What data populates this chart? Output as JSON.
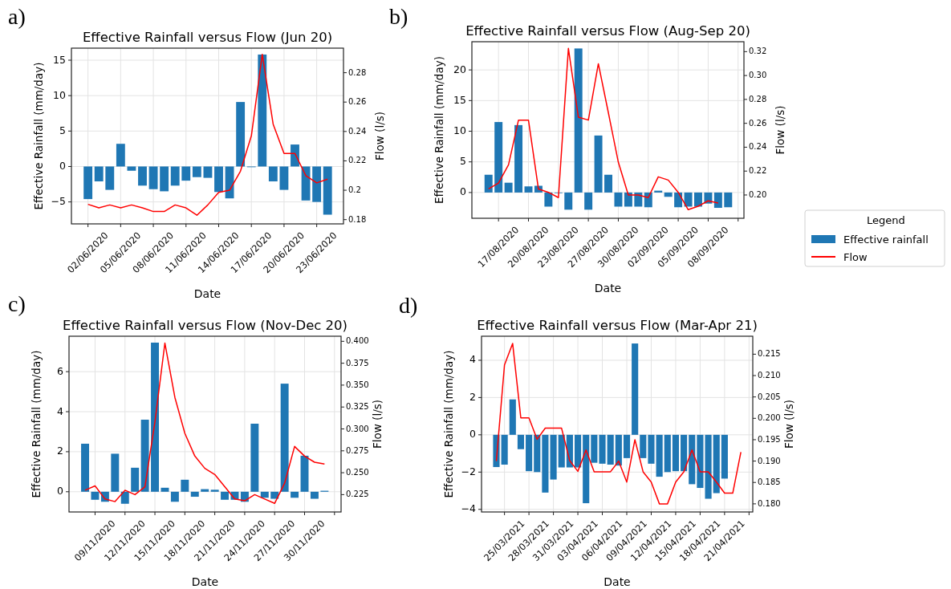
{
  "chart_data": [
    {
      "type": "bar",
      "title": "Effective Rainfall versus Flow (Jun 20)",
      "xlabel": "Date",
      "ylabel": "Effective Rainfall (mm/day)",
      "y2label": "Flow (l/s)",
      "annotations": [
        "a)"
      ],
      "grid": true,
      "x": [
        "2020-06-02",
        "2020-06-03",
        "2020-06-04",
        "2020-06-05",
        "2020-06-06",
        "2020-06-07",
        "2020-06-08",
        "2020-06-09",
        "2020-06-10",
        "2020-06-11",
        "2020-06-12",
        "2020-06-13",
        "2020-06-14",
        "2020-06-15",
        "2020-06-16",
        "2020-06-17",
        "2020-06-18",
        "2020-06-19",
        "2020-06-20",
        "2020-06-21",
        "2020-06-22",
        "2020-06-23",
        "2020-06-24"
      ],
      "xlim": [
        "2020-05-31T11:30",
        "2020-06-25T11:00"
      ],
      "xticks": [
        {
          "value": "2020-06-02",
          "label": "02/06/2020"
        },
        {
          "value": "2020-06-05",
          "label": "05/06/2020"
        },
        {
          "value": "2020-06-08",
          "label": "08/06/2020"
        },
        {
          "value": "2020-06-11",
          "label": "11/06/2020"
        },
        {
          "value": "2020-06-14",
          "label": "14/06/2020"
        },
        {
          "value": "2020-06-17",
          "label": "17/06/2020"
        },
        {
          "value": "2020-06-20",
          "label": "20/06/2020"
        },
        {
          "value": "2020-06-23",
          "label": "23/06/2020"
        }
      ],
      "ylim": [
        -8.1,
        16.7
      ],
      "yticks": [
        {
          "value": -5,
          "label": "−5"
        },
        0,
        5,
        10,
        15
      ],
      "y2lim": [
        0.1771,
        0.2967
      ],
      "y2ticks": [
        0.18,
        0.2,
        0.22,
        0.24,
        0.26,
        0.28
      ],
      "series": [
        {
          "color": "#1f77b4",
          "values": [
            -4.6,
            -2.1,
            -3.3,
            3.2,
            -0.6,
            -2.7,
            -3.2,
            -3.5,
            -2.7,
            -2.0,
            -1.5,
            -1.6,
            -3.6,
            -4.5,
            9.1,
            -0.1,
            15.8,
            -2.1,
            -3.3,
            3.1,
            -4.8,
            -5.0,
            -6.8
          ]
        },
        {
          "type": "line",
          "axis": "y2",
          "color": "#ff0000",
          "values": [
            0.1904,
            0.188,
            0.19,
            0.188,
            0.19,
            0.188,
            0.1855,
            0.1855,
            0.19,
            0.188,
            0.183,
            0.19,
            0.1985,
            0.2,
            0.213,
            0.237,
            0.2925,
            0.245,
            0.225,
            0.225,
            0.21,
            0.205,
            0.2075
          ]
        }
      ]
    },
    {
      "type": "bar",
      "title": "Effective Rainfall versus Flow (Aug-Sep 20)",
      "xlabel": "Date",
      "ylabel": "Effective Rainfall (mm/day)",
      "y2label": "Flow (l/s)",
      "annotations": [
        "b)"
      ],
      "grid": true,
      "legend": "right",
      "legend_title": "Legend",
      "x": [
        "2020-08-17",
        "2020-08-18",
        "2020-08-19",
        "2020-08-20",
        "2020-08-21",
        "2020-08-22",
        "2020-08-23",
        "2020-08-24",
        "2020-08-25",
        "2020-08-26",
        "2020-08-27",
        "2020-08-28",
        "2020-08-29",
        "2020-08-30",
        "2020-08-31",
        "2020-09-01",
        "2020-09-02",
        "2020-09-03",
        "2020-09-04",
        "2020-09-05",
        "2020-09-06",
        "2020-09-07",
        "2020-09-08",
        "2020-09-09",
        "2020-09-10"
      ],
      "xlim": [
        "2020-08-15T08:00",
        "2020-09-11T14:00"
      ],
      "xticks": [
        {
          "value": "2020-08-18",
          "label": "17/08/2020"
        },
        {
          "value": "2020-08-21",
          "label": "20/08/2020"
        },
        {
          "value": "2020-08-24",
          "label": "23/08/2020"
        },
        {
          "value": "2020-08-27",
          "label": "27/08/2020"
        },
        {
          "value": "2020-08-30",
          "label": "30/08/2020"
        },
        {
          "value": "2020-09-02",
          "label": "02/09/2020"
        },
        {
          "value": "2020-09-05",
          "label": "05/09/2020"
        },
        {
          "value": "2020-09-08",
          "label": "08/09/2020"
        },
        {
          "value": "2020-09-11",
          "label": null
        }
      ],
      "ylim": [
        -4.2,
        24.6
      ],
      "yticks": [
        0,
        5,
        10,
        15,
        20
      ],
      "y2lim": [
        0.1805,
        0.3283
      ],
      "y2ticks": [
        {
          "value": 0.2,
          "label": "0.20"
        },
        0.22,
        0.24,
        0.26,
        0.28,
        {
          "value": 0.3,
          "label": "0.30"
        },
        0.32
      ],
      "series": [
        {
          "name": "Effective rainfall",
          "color": "#1f77b4",
          "values": [
            2.9,
            11.5,
            1.6,
            11.0,
            1.0,
            1.1,
            -2.3,
            -0.1,
            -2.8,
            23.5,
            -2.8,
            9.3,
            2.9,
            -2.3,
            -2.3,
            -2.3,
            -2.4,
            0.3,
            -0.7,
            -2.4,
            -2.3,
            -2.3,
            -1.8,
            -2.5,
            -2.4
          ]
        },
        {
          "type": "line",
          "name": "Flow",
          "axis": "y2",
          "color": "#ff0000",
          "values": [
            0.2051,
            0.21,
            0.2253,
            0.2627,
            0.2627,
            0.205,
            0.2022,
            0.1978,
            0.3227,
            0.2651,
            0.2627,
            0.3099,
            0.269,
            0.2275,
            0.2,
            0.2,
            0.1978,
            0.2152,
            0.2125,
            0.2022,
            0.1877,
            0.1906,
            0.1951,
            0.1933,
            null
          ]
        }
      ]
    },
    {
      "type": "bar",
      "title": "Effective Rainfall versus Flow (Nov-Dec 20)",
      "xlabel": "Date",
      "ylabel": "Effective Rainfall (mm/day)",
      "y2label": "Flow (l/s)",
      "annotations": [
        "c)"
      ],
      "grid": true,
      "x": [
        "2020-11-08",
        "2020-11-09",
        "2020-11-10",
        "2020-11-11",
        "2020-11-12",
        "2020-11-13",
        "2020-11-14",
        "2020-11-15",
        "2020-11-16",
        "2020-11-17",
        "2020-11-18",
        "2020-11-19",
        "2020-11-20",
        "2020-11-21",
        "2020-11-22",
        "2020-11-23",
        "2020-11-24",
        "2020-11-25",
        "2020-11-26",
        "2020-11-27",
        "2020-11-28",
        "2020-11-29",
        "2020-11-30",
        "2020-12-01",
        "2020-12-02"
      ],
      "xlim": [
        "2020-11-06T09:20",
        "2020-12-03T15:50"
      ],
      "xticks": [
        {
          "value": "2020-11-09",
          "label": "09/11/2020"
        },
        {
          "value": "2020-11-12",
          "label": "12/11/2020"
        },
        {
          "value": "2020-11-15",
          "label": "15/11/2020"
        },
        {
          "value": "2020-11-18",
          "label": "18/11/2020"
        },
        {
          "value": "2020-11-21",
          "label": "21/11/2020"
        },
        {
          "value": "2020-11-24",
          "label": "24/11/2020"
        },
        {
          "value": "2020-11-27",
          "label": "27/11/2020"
        },
        {
          "value": "2020-11-30",
          "label": "30/11/2020"
        },
        {
          "value": "2020-12-03",
          "label": null
        }
      ],
      "ylim": [
        -1.01,
        7.77
      ],
      "yticks": [
        0,
        2,
        4,
        6
      ],
      "y2lim": [
        0.2052,
        0.4058
      ],
      "y2ticks": [
        0.225,
        {
          "value": 0.25,
          "label": "0.250"
        },
        0.275,
        {
          "value": 0.3,
          "label": "0.300"
        },
        0.325,
        {
          "value": 0.35,
          "label": "0.350"
        },
        0.375,
        {
          "value": 0.4,
          "label": "0.400"
        }
      ],
      "series": [
        {
          "color": "#1f77b4",
          "values": [
            2.4,
            -0.4,
            -0.5,
            1.9,
            -0.6,
            1.2,
            3.6,
            7.45,
            0.2,
            -0.5,
            0.6,
            -0.25,
            0.13,
            0.1,
            -0.4,
            -0.4,
            -0.5,
            3.4,
            -0.3,
            -0.35,
            5.4,
            -0.3,
            1.8,
            -0.35,
            0.05
          ]
        },
        {
          "type": "line",
          "axis": "y2",
          "color": "#ff0000",
          "values": [
            0.23,
            0.235,
            0.22,
            0.217,
            0.23,
            0.225,
            0.234,
            0.308,
            0.398,
            0.336,
            0.295,
            0.269,
            0.255,
            0.248,
            0.234,
            0.22,
            0.218,
            0.225,
            0.22,
            0.215,
            0.238,
            0.28,
            0.269,
            0.262,
            0.26
          ]
        }
      ]
    },
    {
      "type": "bar",
      "title": "Effective Rainfall versus Flow (Mar-Apr 21)",
      "xlabel": "Date",
      "ylabel": "Effective Rainfall (mm/day)",
      "y2label": "Flow (l/s)",
      "annotations": [
        "d)"
      ],
      "grid": true,
      "x": [
        "2021-03-24",
        "2021-03-25",
        "2021-03-26",
        "2021-03-27",
        "2021-03-28",
        "2021-03-29",
        "2021-03-30",
        "2021-03-31",
        "2021-04-01",
        "2021-04-02",
        "2021-04-03",
        "2021-04-04",
        "2021-04-05",
        "2021-04-06",
        "2021-04-07",
        "2021-04-08",
        "2021-04-09",
        "2021-04-10",
        "2021-04-11",
        "2021-04-12",
        "2021-04-13",
        "2021-04-14",
        "2021-04-15",
        "2021-04-16",
        "2021-04-17",
        "2021-04-18",
        "2021-04-19",
        "2021-04-20",
        "2021-04-21",
        "2021-04-22",
        "2021-04-23"
      ],
      "xlim": [
        "2021-03-22T04:20",
        "2021-04-24T11:00"
      ],
      "xticks": [
        {
          "value": "2021-03-25",
          "label": "25/03/2021"
        },
        {
          "value": "2021-03-28",
          "label": "28/03/2021"
        },
        {
          "value": "2021-03-31",
          "label": "31/03/2021"
        },
        {
          "value": "2021-04-03",
          "label": "03/04/2021"
        },
        {
          "value": "2021-04-06",
          "label": "06/04/2021"
        },
        {
          "value": "2021-04-09",
          "label": "09/04/2021"
        },
        {
          "value": "2021-04-12",
          "label": "12/04/2021"
        },
        {
          "value": "2021-04-15",
          "label": "15/04/2021"
        },
        {
          "value": "2021-04-18",
          "label": "18/04/2021"
        },
        {
          "value": "2021-04-21",
          "label": "21/04/2021"
        },
        {
          "value": "2021-04-24",
          "label": null
        }
      ],
      "ylim": [
        -4.14,
        5.29
      ],
      "yticks": [
        {
          "value": -4,
          "label": "−4"
        },
        {
          "value": -2,
          "label": "−2"
        },
        0,
        2,
        4
      ],
      "y2lim": [
        0.1781,
        0.2192
      ],
      "y2ticks": [
        {
          "value": 0.18,
          "label": "0.180"
        },
        0.185,
        {
          "value": 0.19,
          "label": "0.190"
        },
        0.195,
        {
          "value": 0.2,
          "label": "0.200"
        },
        0.205,
        {
          "value": 0.21,
          "label": "0.210"
        },
        0.215
      ],
      "series": [
        {
          "color": "#1f77b4",
          "values": [
            -1.73,
            -1.6,
            1.9,
            -0.77,
            -1.95,
            -2.0,
            -3.1,
            -2.4,
            -1.75,
            -1.75,
            -1.75,
            -3.67,
            -1.5,
            -1.55,
            -1.6,
            -1.65,
            -1.25,
            4.9,
            -1.25,
            -1.55,
            -2.25,
            -2.0,
            -1.95,
            -1.95,
            -2.65,
            -2.85,
            -3.43,
            -3.13,
            -2.35,
            null,
            null
          ]
        },
        {
          "type": "line",
          "axis": "y2",
          "color": "#ff0000",
          "values": [
            0.19,
            0.2125,
            0.2175,
            0.2001,
            0.2001,
            0.1951,
            0.1977,
            0.1977,
            0.1977,
            0.1901,
            0.1876,
            0.1926,
            0.1875,
            0.1875,
            0.1875,
            0.19,
            0.1851,
            0.195,
            0.1875,
            0.1851,
            0.18,
            0.18,
            0.1851,
            0.1875,
            0.1926,
            0.1875,
            0.1875,
            0.1851,
            0.1825,
            0.1825,
            0.1921
          ]
        }
      ]
    }
  ]
}
